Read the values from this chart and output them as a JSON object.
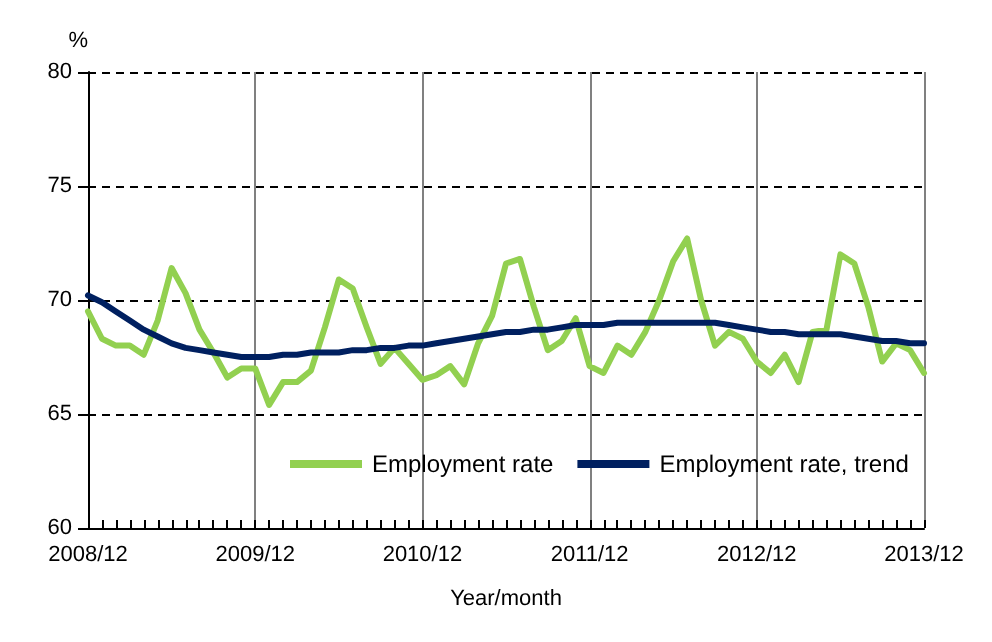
{
  "chart_data": {
    "type": "line",
    "ylabel": "%",
    "xlabel": "Year/month",
    "categories": [
      "2008/12",
      null,
      null,
      null,
      null,
      null,
      null,
      null,
      null,
      null,
      null,
      null,
      "2009/12",
      null,
      null,
      null,
      null,
      null,
      null,
      null,
      null,
      null,
      null,
      null,
      "2010/12",
      null,
      null,
      null,
      null,
      null,
      null,
      null,
      null,
      null,
      null,
      null,
      "2011/12",
      null,
      null,
      null,
      null,
      null,
      null,
      null,
      null,
      null,
      null,
      null,
      "2012/12",
      null,
      null,
      null,
      null,
      null,
      null,
      null,
      null,
      null,
      null,
      null,
      "2013/12"
    ],
    "series": [
      {
        "name": "Employment rate",
        "color": "#92d050",
        "values": [
          69.5,
          68.3,
          68.0,
          68.0,
          67.6,
          69.1,
          71.4,
          70.3,
          68.7,
          67.7,
          66.6,
          67.0,
          67.0,
          65.4,
          66.4,
          66.4,
          66.9,
          68.8,
          70.9,
          70.5,
          68.8,
          67.2,
          67.9,
          67.2,
          66.5,
          66.7,
          67.1,
          66.3,
          68.1,
          69.3,
          71.6,
          71.8,
          69.7,
          67.8,
          68.2,
          69.2,
          67.1,
          66.8,
          68.0,
          67.6,
          68.6,
          70.0,
          71.7,
          72.7,
          70.0,
          68.0,
          68.6,
          68.3,
          67.3,
          66.8,
          67.6,
          66.4,
          68.6,
          68.7,
          72.0,
          71.6,
          69.7,
          67.3,
          68.1,
          67.8,
          66.8
        ]
      },
      {
        "name": "Employment rate, trend",
        "color": "#002060",
        "values": [
          70.2,
          69.9,
          69.5,
          69.1,
          68.7,
          68.4,
          68.1,
          67.9,
          67.8,
          67.7,
          67.6,
          67.5,
          67.5,
          67.5,
          67.6,
          67.6,
          67.7,
          67.7,
          67.7,
          67.8,
          67.8,
          67.9,
          67.9,
          68.0,
          68.0,
          68.1,
          68.2,
          68.3,
          68.4,
          68.5,
          68.6,
          68.6,
          68.7,
          68.7,
          68.8,
          68.9,
          68.9,
          68.9,
          69.0,
          69.0,
          69.0,
          69.0,
          69.0,
          69.0,
          69.0,
          69.0,
          68.9,
          68.8,
          68.7,
          68.6,
          68.6,
          68.5,
          68.5,
          68.5,
          68.5,
          68.4,
          68.3,
          68.2,
          68.2,
          68.1,
          68.1
        ]
      }
    ],
    "ylim": [
      60,
      80
    ],
    "yticks": [
      60,
      65,
      70,
      75,
      80
    ],
    "grid": true,
    "legend": "bottom",
    "marker": "none",
    "line_style": "solid"
  }
}
